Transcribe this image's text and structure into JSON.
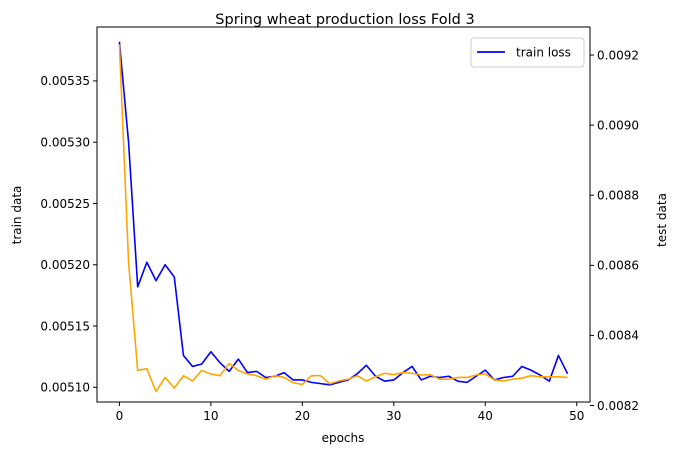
{
  "chart_data": {
    "type": "line",
    "title": "Spring wheat production loss Fold 3",
    "xlabel": "epochs",
    "ylabel_left": "train data",
    "ylabel_right": "test data",
    "ylabel_left_color": "#0000ff",
    "ylabel_right_color": "#ffa500",
    "xlim": [
      -2.45,
      51.45
    ],
    "ylim_left": [
      0.005088,
      0.005394
    ],
    "ylim_right": [
      0.00821,
      0.00928
    ],
    "xticks": [
      0,
      10,
      20,
      30,
      40,
      50
    ],
    "xtick_labels": [
      "0",
      "10",
      "20",
      "30",
      "40",
      "50"
    ],
    "yticks_left": [
      0.0051,
      0.00515,
      0.0052,
      0.00525,
      0.0053,
      0.00535
    ],
    "ytick_labels_left": [
      "0.00510",
      "0.00515",
      "0.00520",
      "0.00525",
      "0.00530",
      "0.00535"
    ],
    "yticks_right": [
      0.0082,
      0.0084,
      0.0086,
      0.0088,
      0.009,
      0.0092
    ],
    "ytick_labels_right": [
      "0.0082",
      "0.0084",
      "0.0086",
      "0.0088",
      "0.0090",
      "0.0092"
    ],
    "grid": false,
    "legend": {
      "position": "top-right",
      "entries": [
        {
          "label": "train loss",
          "color": "#0000ff"
        }
      ]
    },
    "series": [
      {
        "name": "train loss",
        "axis": "left",
        "color": "#0000ff",
        "x": [
          0,
          1,
          2,
          3,
          4,
          5,
          6,
          7,
          8,
          9,
          10,
          11,
          12,
          13,
          14,
          15,
          16,
          17,
          18,
          19,
          20,
          21,
          22,
          23,
          24,
          25,
          26,
          27,
          28,
          29,
          30,
          31,
          32,
          33,
          34,
          35,
          36,
          37,
          38,
          39,
          40,
          41,
          42,
          43,
          44,
          45,
          46,
          47,
          48,
          49
        ],
        "values": [
          0.005382,
          0.0053,
          0.005182,
          0.005202,
          0.005187,
          0.0052,
          0.00519,
          0.005126,
          0.005117,
          0.005119,
          0.005129,
          0.00512,
          0.005113,
          0.005123,
          0.005112,
          0.005113,
          0.005108,
          0.005109,
          0.005112,
          0.005106,
          0.005106,
          0.005104,
          0.005103,
          0.005102,
          0.005104,
          0.005106,
          0.005111,
          0.005118,
          0.005109,
          0.005105,
          0.005106,
          0.005112,
          0.005117,
          0.005106,
          0.005109,
          0.005108,
          0.005109,
          0.005105,
          0.005104,
          0.005109,
          0.005114,
          0.005106,
          0.005108,
          0.005109,
          0.005117,
          0.005114,
          0.00511,
          0.005105,
          0.005126,
          0.005111
        ]
      },
      {
        "name": "",
        "axis": "right",
        "color": "#ffa500",
        "x": [
          0,
          1,
          2,
          3,
          4,
          5,
          6,
          7,
          8,
          9,
          10,
          11,
          12,
          13,
          14,
          15,
          16,
          17,
          18,
          19,
          20,
          21,
          22,
          23,
          24,
          25,
          26,
          27,
          28,
          29,
          30,
          31,
          32,
          33,
          34,
          35,
          36,
          37,
          38,
          39,
          40,
          41,
          42,
          43,
          44,
          45,
          46,
          47,
          48,
          49
        ],
        "values": [
          0.00923,
          0.00861,
          0.0083,
          0.008305,
          0.00824,
          0.00828,
          0.00825,
          0.008285,
          0.00827,
          0.0083,
          0.00829,
          0.008285,
          0.00832,
          0.0083,
          0.00829,
          0.008285,
          0.008275,
          0.008285,
          0.00828,
          0.008265,
          0.00826,
          0.008285,
          0.008285,
          0.008262,
          0.00827,
          0.008275,
          0.008285,
          0.00827,
          0.008282,
          0.008292,
          0.008288,
          0.008294,
          0.008292,
          0.008287,
          0.008288,
          0.008275,
          0.008275,
          0.00828,
          0.00828,
          0.008287,
          0.00829,
          0.008273,
          0.00827,
          0.008275,
          0.008278,
          0.008285,
          0.008282,
          0.008282,
          0.008282,
          0.00828
        ]
      }
    ]
  }
}
